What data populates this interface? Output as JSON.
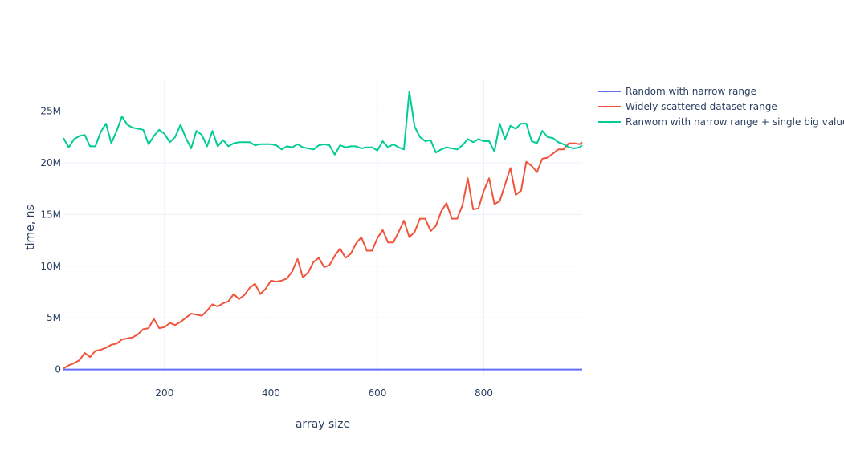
{
  "chart_data": {
    "type": "line",
    "title": "",
    "xlabel": "array size",
    "ylabel": "time, ns",
    "xlim": [
      10,
      985
    ],
    "ylim": [
      -500000,
      28000000
    ],
    "x_ticks": [
      {
        "value": 200,
        "label": "200"
      },
      {
        "value": 400,
        "label": "400"
      },
      {
        "value": 600,
        "label": "600"
      },
      {
        "value": 800,
        "label": "800"
      }
    ],
    "y_ticks": [
      {
        "value": 0,
        "label": "0"
      },
      {
        "value": 5000000,
        "label": "5M"
      },
      {
        "value": 10000000,
        "label": "10M"
      },
      {
        "value": 15000000,
        "label": "15M"
      },
      {
        "value": 20000000,
        "label": "20M"
      },
      {
        "value": 25000000,
        "label": "25M"
      }
    ],
    "grid": true,
    "legend_position": "top-right",
    "x": [
      10,
      20,
      30,
      40,
      50,
      60,
      70,
      80,
      90,
      100,
      110,
      120,
      130,
      140,
      150,
      160,
      170,
      180,
      190,
      200,
      210,
      220,
      230,
      240,
      250,
      260,
      270,
      280,
      290,
      300,
      310,
      320,
      330,
      340,
      350,
      360,
      370,
      380,
      390,
      400,
      410,
      420,
      430,
      440,
      450,
      460,
      470,
      480,
      490,
      500,
      510,
      520,
      530,
      540,
      550,
      560,
      570,
      580,
      590,
      600,
      610,
      620,
      630,
      640,
      650,
      660,
      670,
      680,
      690,
      700,
      710,
      720,
      730,
      740,
      750,
      760,
      770,
      780,
      790,
      800,
      810,
      820,
      830,
      840,
      850,
      860,
      870,
      880,
      890,
      900,
      910,
      920,
      930,
      940,
      950,
      960,
      970,
      980,
      985
    ],
    "series": [
      {
        "name": "Random with narrow range",
        "color": "#636efa",
        "values": [
          0,
          0,
          0,
          0,
          0,
          0,
          0,
          0,
          0,
          0,
          0,
          0,
          0,
          0,
          0,
          0,
          0,
          0,
          0,
          0,
          0,
          0,
          0,
          0,
          0,
          0,
          0,
          0,
          0,
          0,
          0,
          0,
          0,
          0,
          0,
          0,
          0,
          0,
          0,
          0,
          0,
          0,
          0,
          0,
          0,
          0,
          0,
          0,
          0,
          0,
          0,
          0,
          0,
          0,
          0,
          0,
          0,
          0,
          0,
          0,
          0,
          0,
          0,
          0,
          0,
          0,
          0,
          0,
          0,
          0,
          0,
          0,
          0,
          0,
          0,
          0,
          0,
          0,
          0,
          0,
          0,
          0,
          0,
          0,
          0,
          0,
          0,
          0,
          0,
          0,
          0,
          0,
          0,
          0,
          0,
          0,
          0,
          0,
          0
        ]
      },
      {
        "name": "Widely scattered dataset range",
        "color": "#ef553b",
        "values": [
          100000,
          400000,
          600000,
          900000,
          1600000,
          1200000,
          1800000,
          1900000,
          2100000,
          2400000,
          2500000,
          2900000,
          3000000,
          3100000,
          3400000,
          3900000,
          4000000,
          4900000,
          4000000,
          4100000,
          4500000,
          4300000,
          4600000,
          5000000,
          5400000,
          5300000,
          5200000,
          5700000,
          6300000,
          6100000,
          6400000,
          6600000,
          7300000,
          6800000,
          7200000,
          7900000,
          8300000,
          7300000,
          7800000,
          8600000,
          8500000,
          8600000,
          8800000,
          9500000,
          10700000,
          8900000,
          9400000,
          10400000,
          10800000,
          9900000,
          10100000,
          11000000,
          11700000,
          10800000,
          11200000,
          12200000,
          12800000,
          11500000,
          11500000,
          12700000,
          13500000,
          12300000,
          12300000,
          13300000,
          14400000,
          12800000,
          13300000,
          14600000,
          14600000,
          13400000,
          13900000,
          15300000,
          16100000,
          14600000,
          14600000,
          15900000,
          18500000,
          15500000,
          15600000,
          17300000,
          18500000,
          16000000,
          16300000,
          17900000,
          19500000,
          16900000,
          17300000,
          20100000,
          19700000,
          19100000,
          20400000,
          20500000,
          20900000,
          21300000,
          21300000,
          21900000,
          21900000,
          21800000,
          22000000
        ]
      },
      {
        "name": "Ranwom with narrow range + single big value",
        "color": "#00cc96",
        "values": [
          22400000,
          21500000,
          22300000,
          22600000,
          22700000,
          21600000,
          21600000,
          23000000,
          23800000,
          21900000,
          23100000,
          24500000,
          23700000,
          23400000,
          23300000,
          23200000,
          21800000,
          22600000,
          23200000,
          22800000,
          22000000,
          22500000,
          23700000,
          22400000,
          21400000,
          23100000,
          22700000,
          21600000,
          23100000,
          21600000,
          22200000,
          21600000,
          21900000,
          22000000,
          22000000,
          22000000,
          21700000,
          21800000,
          21800000,
          21800000,
          21700000,
          21300000,
          21600000,
          21500000,
          21800000,
          21500000,
          21400000,
          21300000,
          21700000,
          21800000,
          21700000,
          20800000,
          21700000,
          21500000,
          21600000,
          21600000,
          21400000,
          21500000,
          21500000,
          21200000,
          22100000,
          21500000,
          21800000,
          21500000,
          21300000,
          26900000,
          23500000,
          22500000,
          22100000,
          22200000,
          21000000,
          21300000,
          21500000,
          21400000,
          21300000,
          21700000,
          22300000,
          22000000,
          22300000,
          22100000,
          22100000,
          21100000,
          23800000,
          22300000,
          23600000,
          23300000,
          23800000,
          23800000,
          22100000,
          21900000,
          23100000,
          22500000,
          22400000,
          22000000,
          21800000,
          21500000,
          21400000,
          21500000,
          21700000
        ]
      }
    ]
  }
}
